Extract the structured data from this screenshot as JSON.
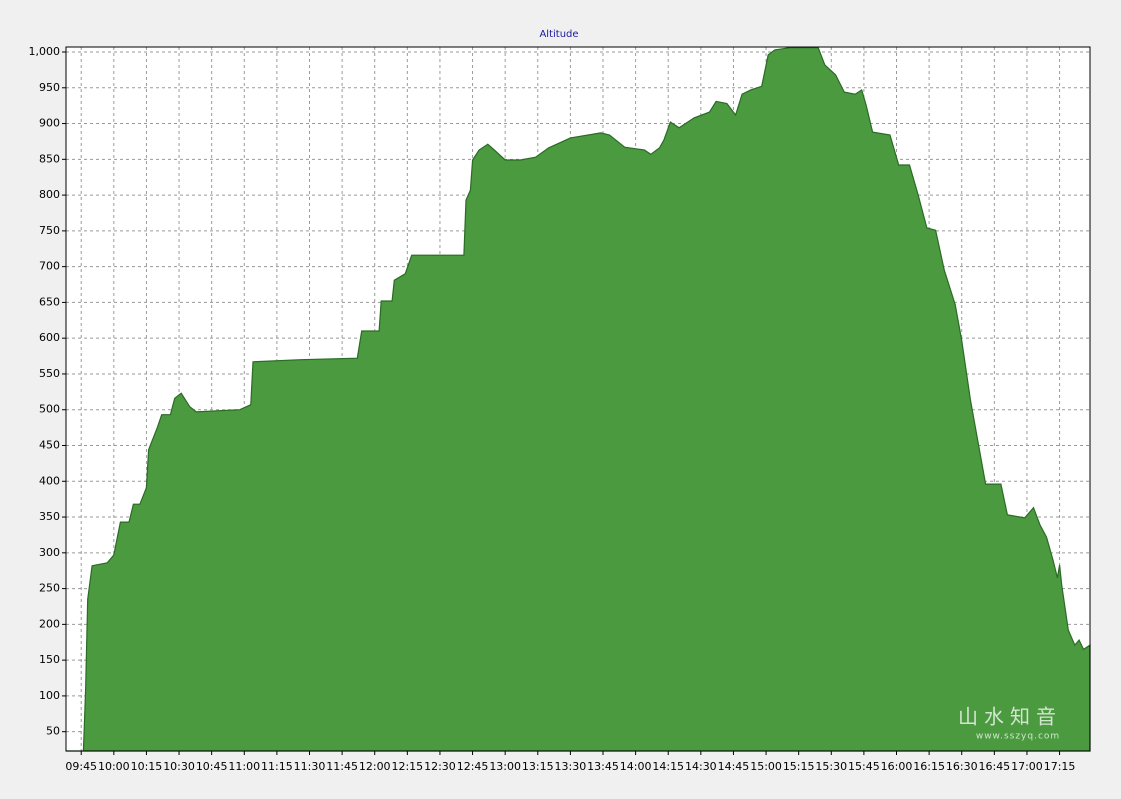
{
  "chart_data": {
    "type": "area",
    "title": "Altitude",
    "color": "#4b9a40",
    "grid": true,
    "x": [
      "09:38",
      "09:46",
      "09:47",
      "09:48",
      "09:50",
      "09:57",
      "10:00",
      "10:03",
      "10:07",
      "10:09",
      "10:12",
      "10:15",
      "10:16",
      "10:20",
      "10:22",
      "10:26",
      "10:28",
      "10:31",
      "10:35",
      "10:38",
      "10:58",
      "11:03",
      "11:04",
      "11:26",
      "11:52",
      "11:54",
      "12:02",
      "12:03",
      "12:08",
      "12:09",
      "12:14",
      "12:17",
      "12:41",
      "12:42",
      "12:44",
      "12:45",
      "12:48",
      "12:52",
      "12:55",
      "13:00",
      "13:07",
      "13:14",
      "13:20",
      "13:30",
      "13:44",
      "13:48",
      "13:55",
      "14:04",
      "14:07",
      "14:11",
      "14:13",
      "14:16",
      "14:20",
      "14:27",
      "14:34",
      "14:37",
      "14:42",
      "14:46",
      "14:49",
      "14:53",
      "14:58",
      "15:01",
      "15:04",
      "15:11",
      "15:24",
      "15:27",
      "15:32",
      "15:36",
      "15:41",
      "15:44",
      "15:46",
      "15:49",
      "15:57",
      "16:01",
      "16:06",
      "16:10",
      "16:14",
      "16:18",
      "16:22",
      "16:27",
      "16:30",
      "16:34",
      "16:41",
      "16:48",
      "16:51",
      "16:59",
      "17:03",
      "17:06",
      "17:09",
      "17:12",
      "17:14",
      "17:15",
      "17:16",
      "17:19",
      "17:22",
      "17:24",
      "17:26",
      "17:29"
    ],
    "values": [
      23,
      23,
      108,
      235,
      282,
      286,
      297,
      343,
      343,
      368,
      368,
      391,
      444,
      475,
      493,
      493,
      516,
      523,
      504,
      497,
      500,
      507,
      567,
      570,
      572,
      610,
      610,
      652,
      652,
      681,
      690,
      716,
      716,
      793,
      807,
      849,
      863,
      871,
      863,
      849,
      849,
      853,
      866,
      880,
      887,
      884,
      867,
      863,
      857,
      866,
      877,
      902,
      894,
      908,
      916,
      931,
      928,
      912,
      941,
      947,
      952,
      996,
      1003,
      1006,
      1006,
      982,
      968,
      944,
      941,
      947,
      926,
      888,
      884,
      842,
      842,
      800,
      754,
      751,
      695,
      647,
      597,
      514,
      396,
      396,
      353,
      349,
      363,
      339,
      322,
      290,
      265,
      283,
      255,
      192,
      171,
      178,
      165,
      171
    ],
    "xlim": [
      "09:38",
      "17:29"
    ],
    "xticks": [
      "09:45",
      "10:00",
      "10:15",
      "10:30",
      "10:45",
      "11:00",
      "11:15",
      "11:30",
      "11:45",
      "12:00",
      "12:15",
      "12:30",
      "12:45",
      "13:00",
      "13:15",
      "13:30",
      "13:45",
      "14:00",
      "14:15",
      "14:30",
      "14:45",
      "15:00",
      "15:15",
      "15:30",
      "15:45",
      "16:00",
      "16:15",
      "16:30",
      "16:45",
      "17:00",
      "17:15"
    ],
    "ylim": [
      23,
      1007
    ],
    "yticks": [
      50,
      100,
      150,
      200,
      250,
      300,
      350,
      400,
      450,
      500,
      550,
      600,
      650,
      700,
      750,
      800,
      850,
      900,
      950,
      {
        "value": 1000,
        "label": "1,000"
      }
    ],
    "watermark": {
      "title": "山水知音",
      "url": "www.sszyq.com"
    }
  }
}
